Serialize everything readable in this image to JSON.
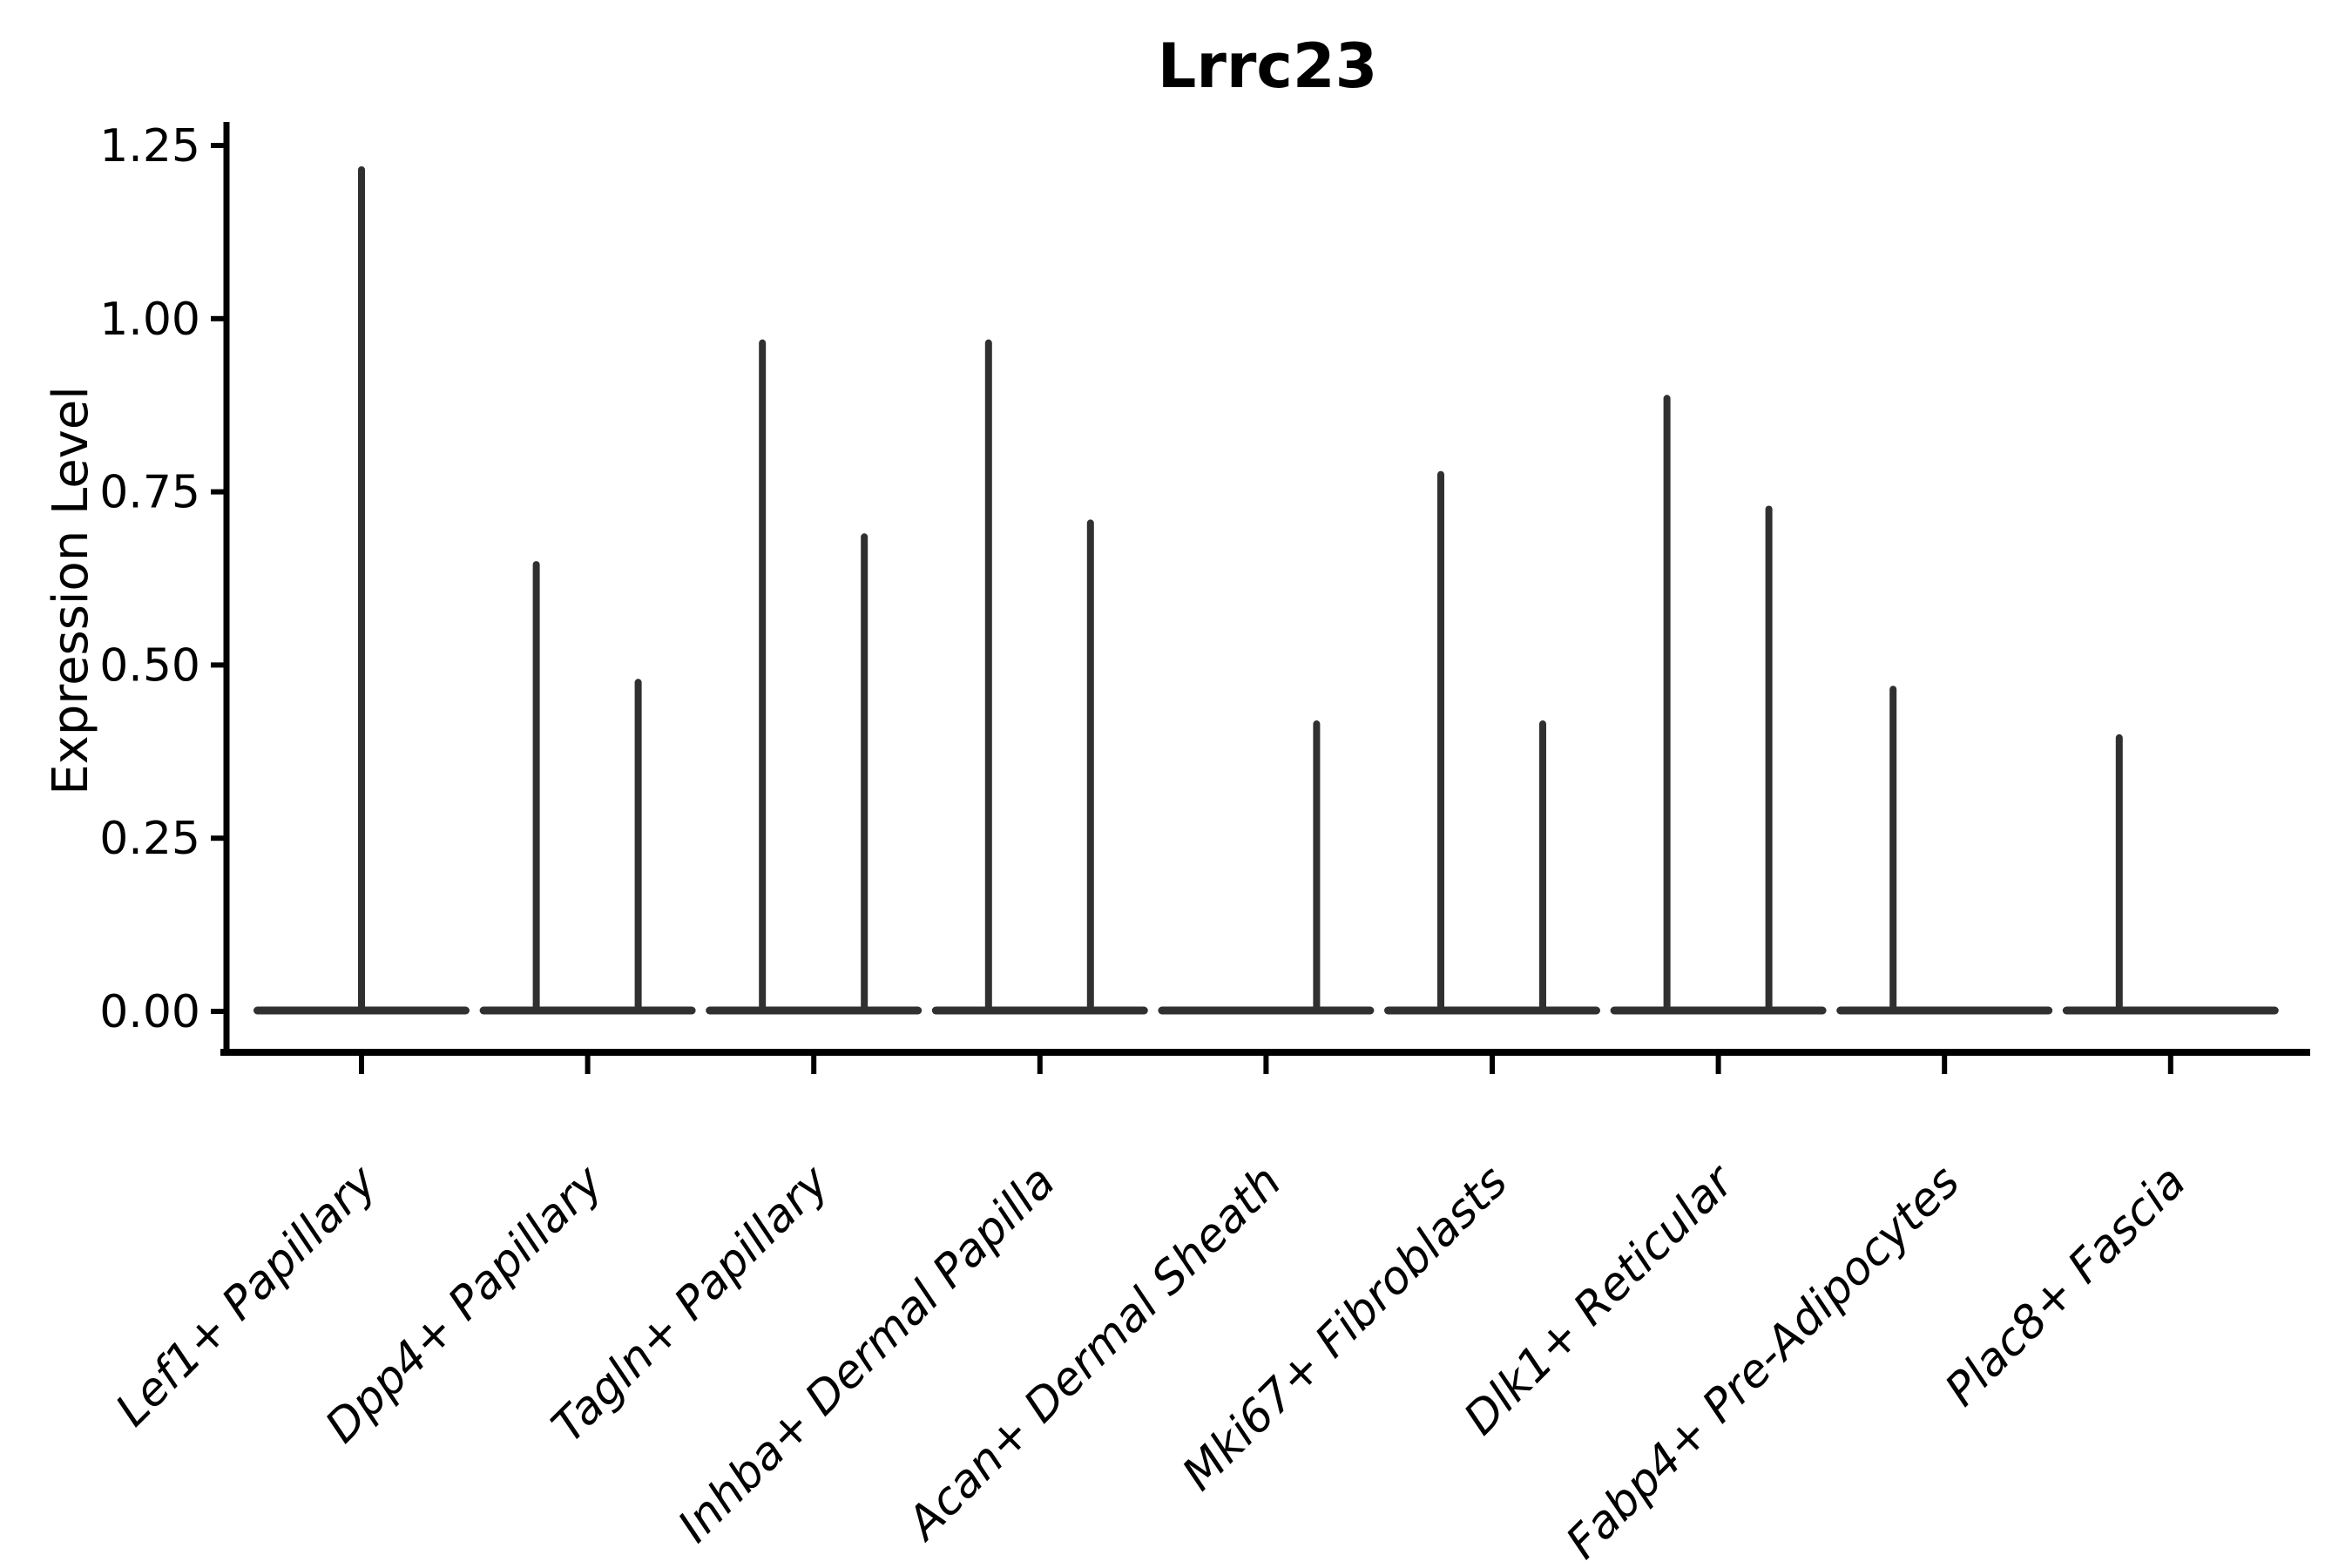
{
  "title": "Lrrc23",
  "axes": {
    "ylabel": "Expression Level",
    "y_ticks": [
      {
        "label": "0.00",
        "value": 0.0
      },
      {
        "label": "0.25",
        "value": 0.25
      },
      {
        "label": "0.50",
        "value": 0.5
      },
      {
        "label": "0.75",
        "value": 0.75
      },
      {
        "label": "1.00",
        "value": 1.0
      },
      {
        "label": "1.25",
        "value": 1.25
      }
    ]
  },
  "chart_data": {
    "type": "violin",
    "title": "Lrrc23",
    "xlabel": "",
    "ylabel": "Expression Level",
    "ylim": [
      -0.06,
      1.28
    ],
    "grid": false,
    "legend": "none",
    "line_color": "#303030",
    "spine_color": "#000000",
    "description": "Single-cell expression violin plot; each violin is collapsed to a flat baseline at 0 with a thin vertical spike reaching the maximum expression value. Some categories contain two side-by-side (dodged) violins: 'left' and 'right'; 'center' means one full-width violin.",
    "categories": [
      "Lef1+ Papillary",
      "Dpp4+ Papillary",
      "Tagln+ Papillary",
      "Inhba+ Dermal Papilla",
      "Acan+ Dermal Sheath",
      "Mki67+ Fibroblasts",
      "Dlk1+ Reticular",
      "Fabp4+ Pre-Adipocytes",
      "Plac8+ Fascia"
    ],
    "series": [
      {
        "category": "Lef1+ Papillary",
        "baseline_value": 0,
        "spikes": [
          {
            "position": "center",
            "max": 1.22
          }
        ]
      },
      {
        "category": "Dpp4+ Papillary",
        "baseline_value": 0,
        "spikes": [
          {
            "position": "left",
            "max": 0.65
          },
          {
            "position": "right",
            "max": 0.48
          }
        ]
      },
      {
        "category": "Tagln+ Papillary",
        "baseline_value": 0,
        "spikes": [
          {
            "position": "left",
            "max": 0.97
          },
          {
            "position": "right",
            "max": 0.69
          }
        ]
      },
      {
        "category": "Inhba+ Dermal Papilla",
        "baseline_value": 0,
        "spikes": [
          {
            "position": "left",
            "max": 0.97
          },
          {
            "position": "right",
            "max": 0.71
          }
        ]
      },
      {
        "category": "Acan+ Dermal Sheath",
        "baseline_value": 0,
        "spikes": [
          {
            "position": "right",
            "max": 0.42
          }
        ]
      },
      {
        "category": "Mki67+ Fibroblasts",
        "baseline_value": 0,
        "spikes": [
          {
            "position": "left",
            "max": 0.78
          },
          {
            "position": "right",
            "max": 0.42
          }
        ]
      },
      {
        "category": "Dlk1+ Reticular",
        "baseline_value": 0,
        "spikes": [
          {
            "position": "left",
            "max": 0.89
          },
          {
            "position": "right",
            "max": 0.73
          }
        ]
      },
      {
        "category": "Fabp4+ Pre-Adipocytes",
        "baseline_value": 0,
        "spikes": [
          {
            "position": "left",
            "max": 0.47
          }
        ]
      },
      {
        "category": "Plac8+ Fascia",
        "baseline_value": 0,
        "spikes": [
          {
            "position": "left",
            "max": 0.4
          }
        ]
      }
    ]
  }
}
